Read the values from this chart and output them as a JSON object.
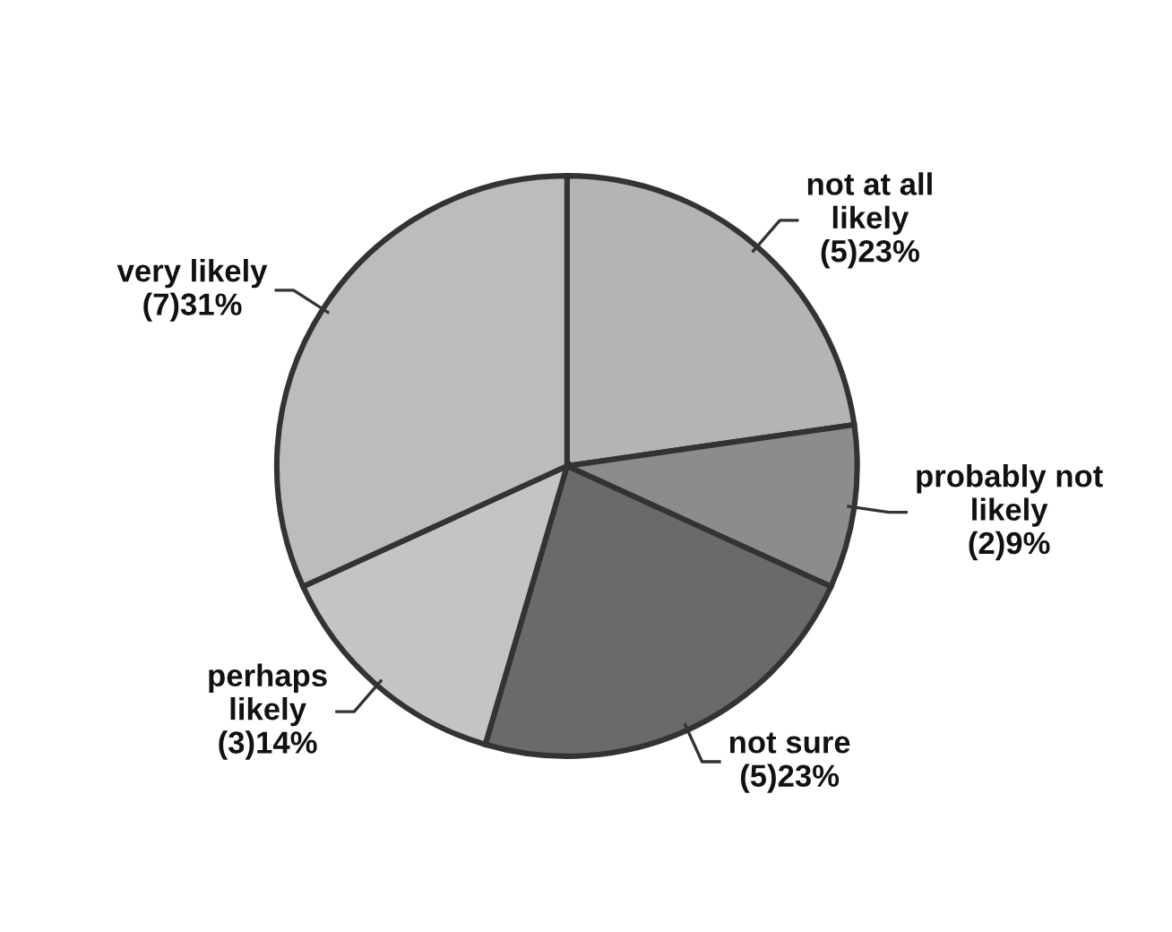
{
  "chart_data": {
    "type": "pie",
    "categories": [
      "not at all\nlikely",
      "probably not\nlikely",
      "not sure",
      "perhaps\nlikely",
      "very likely"
    ],
    "values": [
      5,
      2,
      5,
      3,
      7
    ],
    "value_labels": [
      "(5)23%",
      "(2)9%",
      "(5)23%",
      "(3)14%",
      "(7)31%"
    ],
    "colors": [
      "#b4b4b4",
      "#8c8c8c",
      "#6a6a6a",
      "#c4c4c4",
      "#bcbcbc"
    ],
    "legend": false
  }
}
